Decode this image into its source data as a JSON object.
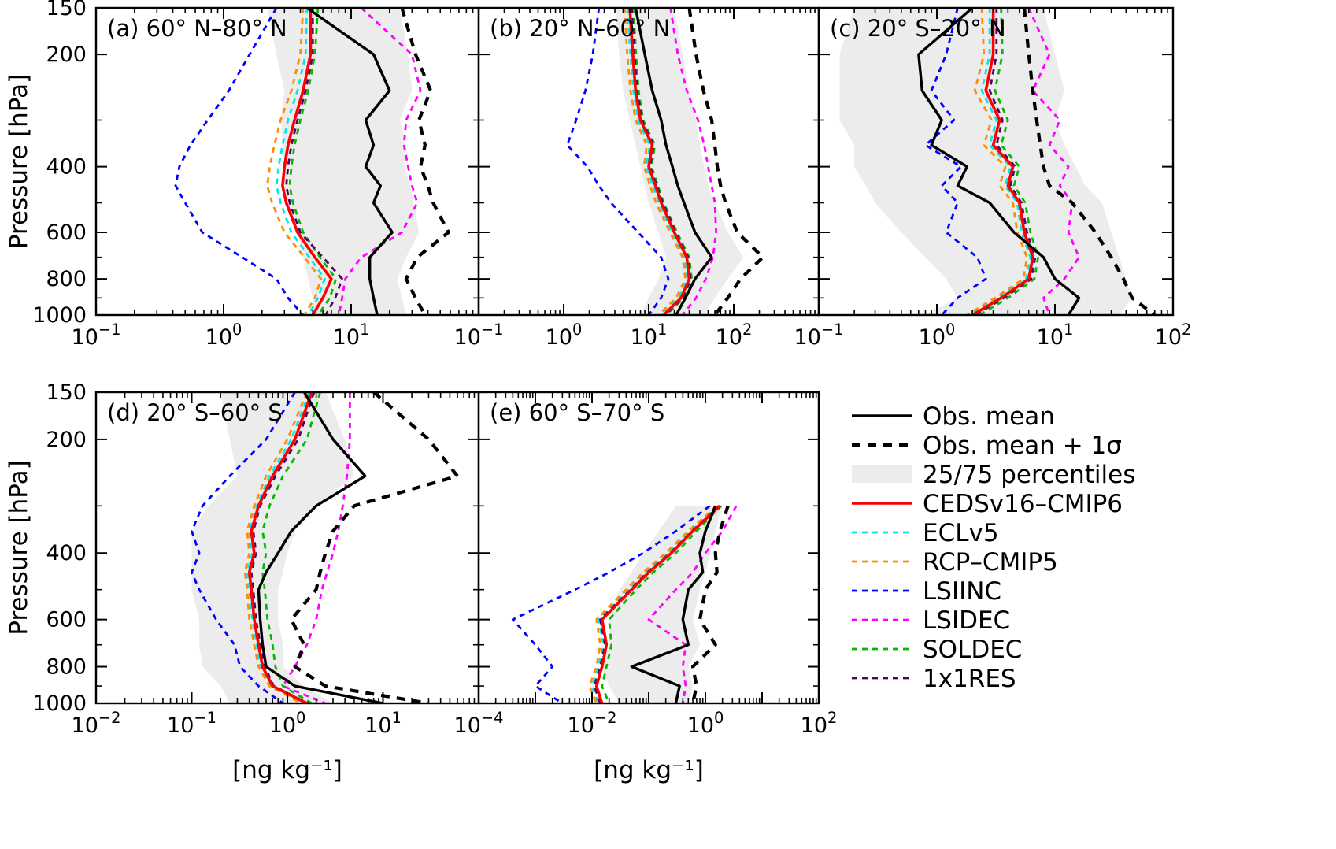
{
  "figure": {
    "ylabel": "Pressure [hPa]",
    "xlabel": "[ng kg⁻¹]",
    "ylim": [
      150,
      1000
    ],
    "yticks": [
      150,
      200,
      400,
      600,
      800,
      1000
    ],
    "yticks_minor": [
      300,
      500,
      700,
      900
    ],
    "background": "#ffffff"
  },
  "legend": [
    {
      "key": "obs_mean",
      "label": "Obs. mean",
      "color": "#000000",
      "dash": "none",
      "width": 3.4,
      "type": "line"
    },
    {
      "key": "obs_p1sigma",
      "label": "Obs. mean + 1σ",
      "color": "#000000",
      "dash": "11 9",
      "width": 4.2,
      "type": "line"
    },
    {
      "key": "band",
      "label": "25/75 percentiles",
      "color": "#ececec",
      "dash": "none",
      "width": 0,
      "type": "band"
    },
    {
      "key": "ceds_cmip6",
      "label": "CEDSv16–CMIP6",
      "color": "#ff0000",
      "dash": "none",
      "width": 3.6,
      "type": "line"
    },
    {
      "key": "eclv5",
      "label": "ECLv5",
      "color": "#00e8e8",
      "dash": "7 6",
      "width": 2.8,
      "type": "line"
    },
    {
      "key": "rcp_cmip5",
      "label": "RCP–CMIP5",
      "color": "#ff8c00",
      "dash": "7 6",
      "width": 2.8,
      "type": "line"
    },
    {
      "key": "lsiinc",
      "label": "LSIINC",
      "color": "#0000ff",
      "dash": "7 6",
      "width": 2.8,
      "type": "line"
    },
    {
      "key": "lsidec",
      "label": "LSIDEC",
      "color": "#ff00ff",
      "dash": "7 6",
      "width": 2.8,
      "type": "line"
    },
    {
      "key": "soldec",
      "label": "SOLDEC",
      "color": "#00bb00",
      "dash": "7 6",
      "width": 2.8,
      "type": "line"
    },
    {
      "key": "res1x1",
      "label": "1x1RES",
      "color": "#550066",
      "dash": "7 6",
      "width": 2.8,
      "type": "line"
    }
  ],
  "chart_data": [
    {
      "id": "a",
      "type": "line",
      "title": "(a) 60° N–80° N",
      "xlim_exp": [
        -1,
        2
      ],
      "xtick_label_exps": [
        -1,
        0,
        1
      ],
      "levels": [
        150,
        200,
        250,
        300,
        350,
        400,
        450,
        500,
        600,
        700,
        800,
        900,
        1000
      ],
      "band": {
        "lo": [
          2.2,
          2.6,
          3.0,
          2.8,
          2.9,
          3.0,
          3.0,
          3.2,
          3.8,
          4.2,
          4.6,
          5.0,
          5.2
        ],
        "hi": [
          24,
          28,
          30,
          24,
          27,
          26,
          29,
          31,
          34,
          27,
          23,
          25,
          27
        ]
      },
      "series": {
        "obs_mean": [
          4.5,
          15,
          20,
          13,
          15,
          13,
          17,
          15,
          21,
          14,
          14,
          15,
          16
        ],
        "obs_p1sigma": [
          25,
          32,
          42,
          34,
          38,
          35,
          40,
          44,
          58,
          33,
          27,
          32,
          38
        ],
        "ceds_cmip6": [
          4.8,
          4.8,
          4.2,
          3.6,
          3.2,
          3.0,
          2.9,
          3.1,
          3.8,
          5.2,
          7.0,
          6.0,
          5.0
        ],
        "eclv5": [
          4.5,
          4.4,
          3.8,
          3.2,
          2.9,
          2.7,
          2.6,
          2.8,
          3.4,
          4.7,
          6.2,
          5.5,
          4.6
        ],
        "rcp_cmip5": [
          4.2,
          4.0,
          3.4,
          2.8,
          2.5,
          2.3,
          2.2,
          2.4,
          3.0,
          4.3,
          5.8,
          5.2,
          4.3
        ],
        "lsiinc": [
          2.6,
          1.6,
          1.1,
          0.75,
          0.55,
          0.45,
          0.42,
          0.5,
          0.68,
          1.4,
          2.6,
          3.2,
          4.2
        ],
        "lsidec": [
          12,
          30,
          35,
          27,
          26,
          28,
          30,
          33,
          25,
          12,
          9,
          8.5,
          8
        ],
        "soldec": [
          5.5,
          5.2,
          4.6,
          4.0,
          3.6,
          3.4,
          3.3,
          3.5,
          4.2,
          5.7,
          7.6,
          6.8,
          5.5
        ],
        "res1x1": [
          5.0,
          5.0,
          4.4,
          3.8,
          3.4,
          3.2,
          3.1,
          3.3,
          4.0,
          6.0,
          8.5,
          7.5,
          6.3
        ]
      }
    },
    {
      "id": "b",
      "type": "line",
      "title": "(b) 20° N–60° N",
      "xlim_exp": [
        -1,
        3
      ],
      "xtick_label_exps": [
        -1,
        0,
        1,
        2
      ],
      "levels": [
        150,
        200,
        250,
        300,
        350,
        400,
        450,
        500,
        600,
        700,
        800,
        900,
        1000
      ],
      "band": {
        "lo": [
          4,
          4.5,
          5,
          6,
          7,
          8,
          9,
          10,
          13,
          16,
          13,
          10,
          8
        ],
        "hi": [
          20,
          25,
          30,
          36,
          40,
          45,
          50,
          60,
          85,
          130,
          85,
          60,
          45
        ]
      },
      "series": {
        "obs_mean": [
          7,
          9,
          11,
          14,
          16,
          19,
          22,
          26,
          35,
          55,
          35,
          27,
          21
        ],
        "obs_p1sigma": [
          30,
          36,
          44,
          55,
          60,
          64,
          70,
          80,
          110,
          220,
          120,
          85,
          60
        ],
        "ceds_cmip6": [
          6,
          6.5,
          7,
          8,
          11,
          10,
          12,
          14,
          20,
          28,
          30,
          24,
          15
        ],
        "eclv5": [
          5.6,
          6.1,
          6.6,
          7.5,
          10.3,
          9.4,
          11.2,
          13.2,
          19,
          26.5,
          28.5,
          22.5,
          14
        ],
        "rcp_cmip5": [
          5.2,
          5.6,
          6.1,
          7,
          9.5,
          8.8,
          10.4,
          12.2,
          17.8,
          25,
          27,
          21,
          13
        ],
        "lsiinc": [
          2.6,
          2.2,
          1.8,
          1.4,
          1.1,
          1.9,
          2.6,
          3.6,
          7.5,
          14,
          17,
          14,
          10
        ],
        "lsidec": [
          18,
          22,
          28,
          38,
          45,
          50,
          55,
          60,
          62,
          57,
          47,
          36,
          25
        ],
        "soldec": [
          6.6,
          7.1,
          7.6,
          8.6,
          11.8,
          10.8,
          12.8,
          15,
          21.5,
          30,
          32,
          26,
          16
        ],
        "res1x1": [
          6.3,
          6.8,
          7.3,
          8.3,
          11.4,
          10.4,
          12.4,
          14.6,
          20.8,
          29,
          31,
          25,
          15.5
        ]
      }
    },
    {
      "id": "c",
      "type": "line",
      "title": "(c) 20° S–20° N",
      "xlim_exp": [
        -1,
        2
      ],
      "xtick_label_exps": [
        -1,
        0,
        1,
        2
      ],
      "levels": [
        150,
        200,
        250,
        300,
        350,
        400,
        450,
        500,
        600,
        700,
        800,
        900,
        1000
      ],
      "band": {
        "lo": [
          0.2,
          0.15,
          0.15,
          0.15,
          0.2,
          0.2,
          0.25,
          0.3,
          0.5,
          0.8,
          1.2,
          1.5,
          0.8
        ],
        "hi": [
          8,
          10,
          12,
          10,
          12,
          15,
          18,
          25,
          30,
          35,
          40,
          45,
          35
        ]
      },
      "series": {
        "obs_mean": [
          2.0,
          0.7,
          0.75,
          1.1,
          0.9,
          1.8,
          1.5,
          2.8,
          4.5,
          8,
          10,
          16,
          13
        ],
        "obs_p1sigma": [
          5.5,
          6,
          6.5,
          7,
          7.5,
          8,
          9,
          14,
          22,
          30,
          38,
          45,
          70
        ],
        "ceds_cmip6": [
          3.0,
          3.0,
          2.6,
          3.4,
          3.0,
          4.4,
          4.0,
          5.0,
          5.5,
          6.5,
          6.0,
          3.5,
          2.0
        ],
        "eclv5": [
          2.8,
          2.8,
          2.4,
          3.2,
          2.8,
          4.2,
          3.8,
          4.8,
          5.2,
          6.2,
          5.7,
          3.3,
          1.9
        ],
        "rcp_cmip5": [
          2.4,
          2.5,
          2.1,
          2.9,
          2.5,
          3.8,
          3.4,
          4.4,
          4.8,
          5.8,
          5.4,
          3.1,
          1.8
        ],
        "lsiinc": [
          1.5,
          1.2,
          0.9,
          1.4,
          0.8,
          1.6,
          1.1,
          1.5,
          1.2,
          2.2,
          2.6,
          1.5,
          1.1
        ],
        "lsidec": [
          6,
          9,
          6.5,
          11,
          9,
          13,
          11,
          14,
          13,
          16,
          12,
          8,
          9
        ],
        "soldec": [
          3.5,
          3.6,
          3.1,
          4.0,
          3.5,
          5.0,
          4.5,
          5.6,
          6.2,
          7.2,
          6.7,
          4.0,
          2.3
        ],
        "res1x1": [
          3.2,
          3.2,
          2.8,
          3.6,
          3.2,
          4.6,
          4.2,
          5.2,
          5.8,
          6.8,
          6.3,
          3.7,
          2.1
        ]
      }
    },
    {
      "id": "d",
      "type": "line",
      "title": "(d) 20° S–60° S",
      "xlim_exp": [
        -2,
        2
      ],
      "xtick_label_exps": [
        -2,
        -1,
        0,
        1
      ],
      "levels": [
        150,
        200,
        250,
        300,
        350,
        400,
        450,
        500,
        600,
        700,
        800,
        900,
        1000
      ],
      "band": {
        "lo": [
          0.2,
          0.25,
          0.3,
          0.15,
          0.1,
          0.1,
          0.1,
          0.1,
          0.12,
          0.12,
          0.13,
          0.2,
          0.25
        ],
        "hi": [
          2.5,
          4,
          5,
          2,
          1.2,
          1.0,
          0.9,
          0.8,
          0.8,
          0.9,
          0.9,
          1.5,
          3
        ]
      },
      "series": {
        "obs_mean": [
          1.5,
          3,
          6.5,
          2,
          1.1,
          0.8,
          0.6,
          0.5,
          0.52,
          0.55,
          0.6,
          1.2,
          10
        ],
        "obs_p1sigma": [
          8,
          30,
          60,
          5,
          3,
          2.5,
          2.2,
          2.0,
          1.1,
          1.5,
          1.2,
          2.5,
          30
        ],
        "ceds_cmip6": [
          1.8,
          1.2,
          0.7,
          0.5,
          0.42,
          0.45,
          0.4,
          0.42,
          0.45,
          0.5,
          0.55,
          0.7,
          1.6
        ],
        "eclv5": [
          1.7,
          1.1,
          0.65,
          0.48,
          0.4,
          0.43,
          0.38,
          0.4,
          0.43,
          0.48,
          0.52,
          0.67,
          1.5
        ],
        "rcp_cmip5": [
          1.6,
          1.0,
          0.6,
          0.45,
          0.38,
          0.4,
          0.36,
          0.38,
          0.4,
          0.45,
          0.5,
          0.65,
          1.4
        ],
        "lsiinc": [
          1.2,
          0.6,
          0.25,
          0.13,
          0.1,
          0.12,
          0.1,
          0.12,
          0.18,
          0.28,
          0.32,
          0.5,
          0.9
        ],
        "lsidec": [
          4.5,
          4.5,
          4.2,
          3.8,
          3.4,
          3.0,
          2.6,
          2.3,
          2.0,
          1.6,
          1.2,
          0.9,
          2.5
        ],
        "soldec": [
          2.2,
          1.6,
          0.9,
          0.65,
          0.55,
          0.6,
          0.55,
          0.58,
          0.62,
          0.7,
          0.75,
          0.9,
          1.8
        ],
        "res1x1": [
          1.9,
          1.3,
          0.75,
          0.52,
          0.44,
          0.47,
          0.42,
          0.44,
          0.47,
          0.52,
          0.58,
          0.72,
          1.65
        ]
      }
    },
    {
      "id": "e",
      "type": "line",
      "title": "(e) 60° S–70° S",
      "xlim_exp": [
        -4,
        2
      ],
      "xtick_label_exps": [
        -4,
        -2,
        0,
        2
      ],
      "levels": [
        150,
        200,
        250,
        300,
        350,
        400,
        450,
        500,
        600,
        700,
        800,
        900,
        1000
      ],
      "band": {
        "lo": [
          null,
          null,
          null,
          0.3,
          0.15,
          0.08,
          0.05,
          0.03,
          0.02,
          0.02,
          0.015,
          0.02,
          0.03
        ],
        "hi": [
          null,
          null,
          null,
          2.0,
          1.5,
          1.2,
          1.0,
          0.8,
          0.6,
          0.8,
          0.5,
          0.6,
          0.5
        ]
      },
      "series": {
        "obs_mean": [
          null,
          null,
          null,
          1.5,
          1.0,
          0.8,
          0.9,
          0.5,
          0.4,
          0.5,
          0.05,
          0.35,
          0.3
        ],
        "obs_p1sigma": [
          null,
          null,
          null,
          2.5,
          1.8,
          1.5,
          1.6,
          1.0,
          0.8,
          1.5,
          0.6,
          0.7,
          0.6
        ],
        "ceds_cmip6": [
          null,
          null,
          null,
          1.8,
          0.6,
          0.25,
          0.1,
          0.05,
          0.015,
          0.018,
          0.015,
          0.012,
          0.015
        ],
        "eclv5": [
          null,
          null,
          null,
          1.7,
          0.55,
          0.22,
          0.09,
          0.045,
          0.013,
          0.016,
          0.013,
          0.01,
          0.013
        ],
        "rcp_cmip5": [
          null,
          null,
          null,
          1.6,
          0.5,
          0.2,
          0.08,
          0.04,
          0.012,
          0.014,
          0.012,
          0.009,
          0.012
        ],
        "lsiinc": [
          null,
          null,
          null,
          1.2,
          0.3,
          0.08,
          0.02,
          0.005,
          0.0004,
          0.001,
          0.002,
          0.001,
          0.003
        ],
        "lsidec": [
          null,
          null,
          null,
          3.5,
          2.0,
          1.0,
          0.6,
          0.3,
          0.1,
          0.45,
          0.4,
          0.45,
          0.4
        ],
        "soldec": [
          null,
          null,
          null,
          1.9,
          0.7,
          0.3,
          0.12,
          0.06,
          0.02,
          0.022,
          0.018,
          0.015,
          0.02
        ],
        "res1x1": [
          null,
          null,
          null,
          1.75,
          0.58,
          0.24,
          0.095,
          0.048,
          0.014,
          0.017,
          0.014,
          0.011,
          0.014
        ]
      }
    }
  ]
}
